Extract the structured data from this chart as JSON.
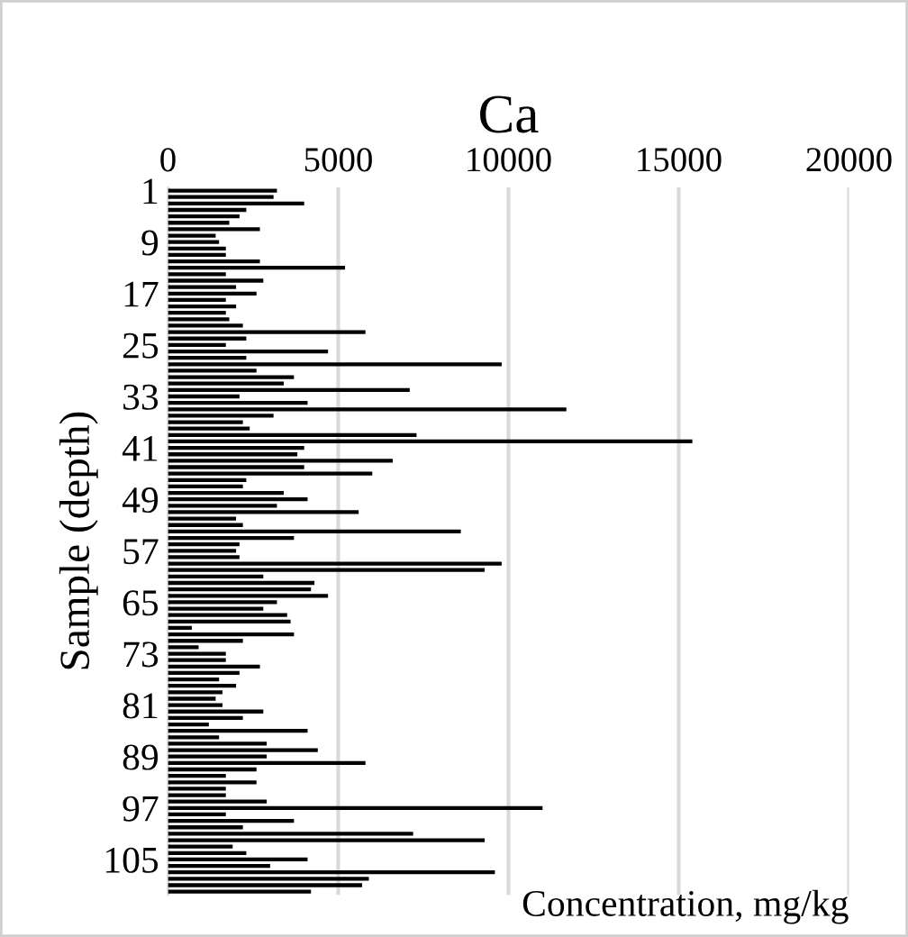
{
  "chart_data": {
    "type": "bar",
    "orientation": "horizontal",
    "title": "Ca",
    "xlabel": "Concentration, mg/kg",
    "ylabel": "Sample (depth)",
    "categories": [
      "1",
      null,
      null,
      null,
      null,
      null,
      null,
      null,
      "9",
      null,
      null,
      null,
      null,
      null,
      null,
      null,
      "17",
      null,
      null,
      null,
      null,
      null,
      null,
      null,
      "25",
      null,
      null,
      null,
      null,
      null,
      null,
      null,
      "33",
      null,
      null,
      null,
      null,
      null,
      null,
      null,
      "41",
      null,
      null,
      null,
      null,
      null,
      null,
      null,
      "49",
      null,
      null,
      null,
      null,
      null,
      null,
      null,
      "57",
      null,
      null,
      null,
      null,
      null,
      null,
      null,
      "65",
      null,
      null,
      null,
      null,
      null,
      null,
      null,
      "73",
      null,
      null,
      null,
      null,
      null,
      null,
      null,
      "81",
      null,
      null,
      null,
      null,
      null,
      null,
      null,
      "89",
      null,
      null,
      null,
      null,
      null,
      null,
      null,
      "97",
      null,
      null,
      null,
      null,
      null,
      null,
      null,
      "105",
      null,
      null,
      null,
      null,
      null
    ],
    "values": [
      3200,
      3100,
      4000,
      2300,
      2100,
      1800,
      2700,
      1400,
      1500,
      1700,
      1700,
      2700,
      5200,
      1700,
      2800,
      2000,
      2600,
      1700,
      2000,
      1700,
      1800,
      2200,
      5800,
      2300,
      1700,
      4700,
      2300,
      9800,
      2600,
      3700,
      3400,
      7100,
      2100,
      4100,
      11700,
      3100,
      2200,
      2400,
      7300,
      15400,
      4000,
      3800,
      6600,
      4000,
      6000,
      2300,
      2200,
      3400,
      4100,
      3200,
      5600,
      2000,
      2200,
      8600,
      3700,
      2100,
      2000,
      2100,
      9800,
      9300,
      2800,
      4300,
      4200,
      4700,
      3200,
      2800,
      3500,
      3600,
      700,
      3700,
      2200,
      900,
      1700,
      1700,
      2700,
      2100,
      1500,
      2000,
      1600,
      1400,
      1600,
      2800,
      2200,
      1200,
      4100,
      1500,
      2900,
      4400,
      2900,
      5800,
      2600,
      1700,
      2600,
      1700,
      1700,
      2900,
      11000,
      1700,
      3700,
      2200,
      7200,
      9300,
      1900,
      2300,
      4100,
      3000,
      9600,
      5900,
      5700,
      4200
    ],
    "color": "#000000",
    "xlim": [
      0,
      20000
    ],
    "xticks": [
      0,
      5000,
      10000,
      15000,
      20000
    ],
    "grid": "x"
  }
}
